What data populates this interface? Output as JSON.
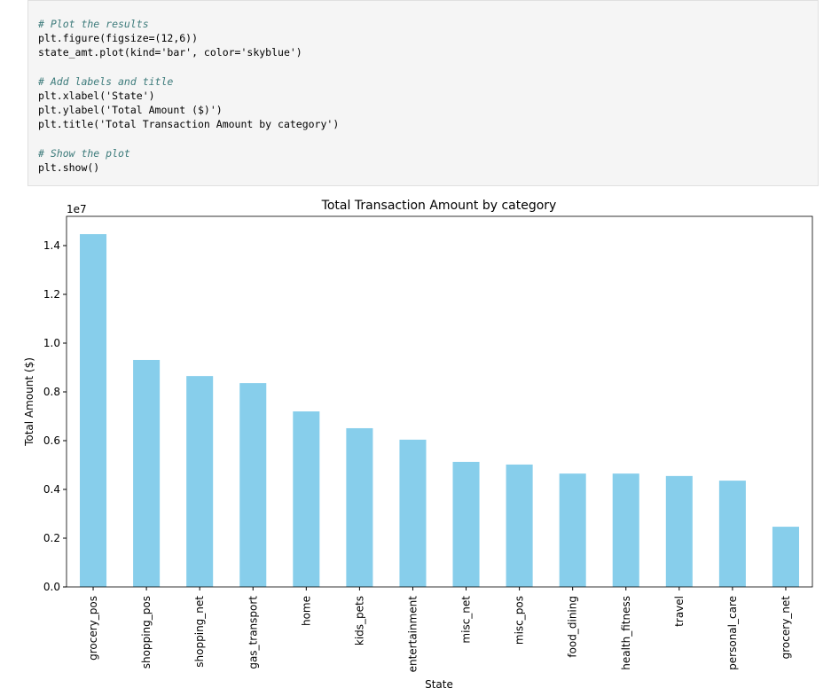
{
  "code_cell": {
    "blocks": [
      [
        "# Plot the results",
        "plt.figure(figsize=(12,6))",
        "state_amt.plot(kind='bar', color='skyblue')"
      ],
      [
        "# Add labels and title",
        "plt.xlabel('State')",
        "plt.ylabel('Total Amount ($)')",
        "plt.title('Total Transaction Amount by category')"
      ],
      [
        "# Show the plot",
        "plt.show()"
      ]
    ]
  },
  "chart_data": {
    "type": "bar",
    "title": "Total Transaction Amount by category",
    "x_label": "State",
    "y_label": "Total Amount ($)",
    "y_offset_label": "1e7",
    "categories": [
      "grocery_pos",
      "shopping_pos",
      "shopping_net",
      "gas_transport",
      "home",
      "kids_pets",
      "entertainment",
      "misc_net",
      "misc_pos",
      "food_dining",
      "health_fitness",
      "travel",
      "personal_care",
      "grocery_net"
    ],
    "values": [
      1.447,
      0.931,
      0.865,
      0.836,
      0.72,
      0.651,
      0.604,
      0.513,
      0.502,
      0.465,
      0.465,
      0.455,
      0.436,
      0.247
    ],
    "color": "#87ceeb",
    "ylim": [
      0,
      1.52
    ],
    "yticks": [
      {
        "value": 0,
        "label": "0.0"
      },
      0.2,
      0.4,
      0.6,
      0.8,
      {
        "value": 1,
        "label": "1.0"
      },
      1.2,
      1.4
    ],
    "grid": false
  }
}
